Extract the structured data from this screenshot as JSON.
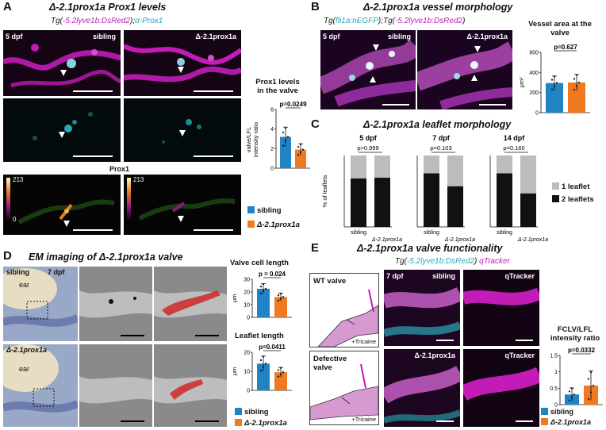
{
  "colors": {
    "sibling": "#1f83c6",
    "mutant": "#ef7a22",
    "one_leaflet": "#bcbcbc",
    "two_leaflets": "#111111",
    "magenta": "#c21bb6",
    "cyan": "#2aa6b8"
  },
  "panelA": {
    "letter": "A",
    "title": "Δ-2.1prox1a Prox1 levels",
    "sub_prefix": "Tg(",
    "sub_mag": "-5.2lyve1b:DsRed2",
    "sub_mid": ");",
    "sub_cyan": "α-Prox1",
    "stage": "5 dpf",
    "col_sibling": "sibling",
    "col_mutant": "Δ-2.1prox1a",
    "heat_title": "Prox1",
    "heat_max": "213",
    "heat_min": "0",
    "chart_title_1": "Prox1 levels",
    "chart_title_2": "in the valve",
    "ylabel_1": "valve/LFL",
    "ylabel_2": "intensity ratio",
    "p_value": "p=0.0249",
    "legend_sibling": "sibling",
    "legend_mutant": "Δ-2.1prox1a"
  },
  "panelB": {
    "letter": "B",
    "title": "Δ-2.1prox1a vessel morphology",
    "sub_prefix": "Tg(",
    "sub_cyan": "fli1a:nEGFP",
    "sub_mid": ");Tg(",
    "sub_mag": "-5.2lyve1b:DsRed2",
    "sub_end": ")",
    "stage": "5 dpf",
    "col_sibling": "sibling",
    "col_mutant": "Δ-2.1prox1a",
    "chart_title_1": "Vessel area at the",
    "chart_title_2": "valve",
    "ylabel": "μm²",
    "p_value": "p=0.627"
  },
  "panelC": {
    "letter": "C",
    "title": "Δ-2.1prox1a leaflet morphology",
    "ylabel": "% of leaflets",
    "legend_one": "1 leaflet",
    "legend_two": "2 leaflets",
    "groups": [
      {
        "stage": "5 dpf",
        "p": "p>0.999"
      },
      {
        "stage": "7 dpf",
        "p": "p=0.103"
      },
      {
        "stage": "14 dpf",
        "p": "p=0.160"
      }
    ],
    "xlabel_sibling": "sibling",
    "xlabel_mutant": "Δ-2.1prox1a"
  },
  "panelD": {
    "letter": "D",
    "title": "EM imaging of Δ-2.1prox1a valve",
    "row1_label": "sibling",
    "row1_stage": "7 dpf",
    "row2_label": "Δ-2.1prox1a",
    "ear": "ear",
    "chart1_title": "Valve cell length",
    "chart1_p": "p = 0.024",
    "chart2_title": "Leaflet length",
    "chart2_p": "p=0.0411",
    "ylabel": "μm",
    "legend_sibling": "sibling",
    "legend_mutant": "Δ-2.1prox1a"
  },
  "panelE": {
    "letter": "E",
    "title": "Δ-2.1prox1a valve functionality",
    "sub_prefix": "Tg(",
    "sub_cyan": "-5.2lyve1b:DsRed2",
    "sub_mid": ") ",
    "sub_mag": "qTracker",
    "wt_valve": "WT valve",
    "defective_1": "Defective",
    "defective_2": "valve",
    "tricaine": "+Tricaine",
    "stage": "7 dpf",
    "row1_label": "sibling",
    "row2_label": "Δ-2.1prox1a",
    "qtracker": "qTracker",
    "chart_title_1": "FCLV/LFL",
    "chart_title_2": "intensity ratio",
    "p_value": "p=0.0332",
    "legend_sibling": "sibling",
    "legend_mutant": "Δ-2.1prox1a"
  },
  "chart_data": [
    {
      "id": "A",
      "type": "bar",
      "categories": [
        "sibling",
        "Δ-2.1prox1a"
      ],
      "values": [
        3.2,
        1.9
      ],
      "errors": [
        1.0,
        0.6
      ],
      "ylim": [
        0,
        6
      ],
      "yticks": [
        0,
        2,
        4,
        6
      ],
      "ylabel": "valve/LFL intensity ratio",
      "p": "p=0.0249"
    },
    {
      "id": "B",
      "type": "bar",
      "categories": [
        "sibling",
        "Δ-2.1prox1a"
      ],
      "values": [
        295,
        300
      ],
      "errors": [
        70,
        80
      ],
      "ylim": [
        0,
        600
      ],
      "yticks": [
        0,
        200,
        400,
        600
      ],
      "ylabel": "μm²",
      "p": "p=0.627"
    },
    {
      "id": "C",
      "type": "bar",
      "stacked": true,
      "groups": [
        "5 dpf",
        "7 dpf",
        "14 dpf"
      ],
      "categories": [
        "sibling",
        "Δ-2.1prox1a"
      ],
      "series": [
        {
          "name": "2 leaflets",
          "values": [
            [
              68,
              69
            ],
            [
              75,
              57
            ],
            [
              75,
              47
            ]
          ]
        },
        {
          "name": "1 leaflet",
          "values": [
            [
              32,
              31
            ],
            [
              25,
              43
            ],
            [
              25,
              53
            ]
          ]
        }
      ],
      "ylim": [
        0,
        100
      ],
      "ylabel": "% of leaflets"
    },
    {
      "id": "D1",
      "type": "bar",
      "categories": [
        "sibling",
        "Δ-2.1prox1a"
      ],
      "values": [
        22.5,
        16
      ],
      "errors": [
        4,
        3
      ],
      "ylim": [
        0,
        30
      ],
      "yticks": [
        0,
        10,
        20,
        30
      ],
      "ylabel": "μm",
      "p": "p = 0.024"
    },
    {
      "id": "D2",
      "type": "bar",
      "categories": [
        "sibling",
        "Δ-2.1prox1a"
      ],
      "values": [
        14,
        9.5
      ],
      "errors": [
        4,
        2.5
      ],
      "ylim": [
        0,
        20
      ],
      "yticks": [
        0,
        10,
        20
      ],
      "ylabel": "μm",
      "p": "p=0.0411"
    },
    {
      "id": "E",
      "type": "bar",
      "categories": [
        "sibling",
        "Δ-2.1prox1a"
      ],
      "values": [
        0.31,
        0.58
      ],
      "errors": [
        0.2,
        0.45
      ],
      "ylim": [
        0,
        1.5
      ],
      "yticks": [
        0,
        0.5,
        1.0,
        1.5
      ],
      "ylabel": "FCLV/LFL intensity ratio",
      "p": "p=0.0332"
    }
  ]
}
